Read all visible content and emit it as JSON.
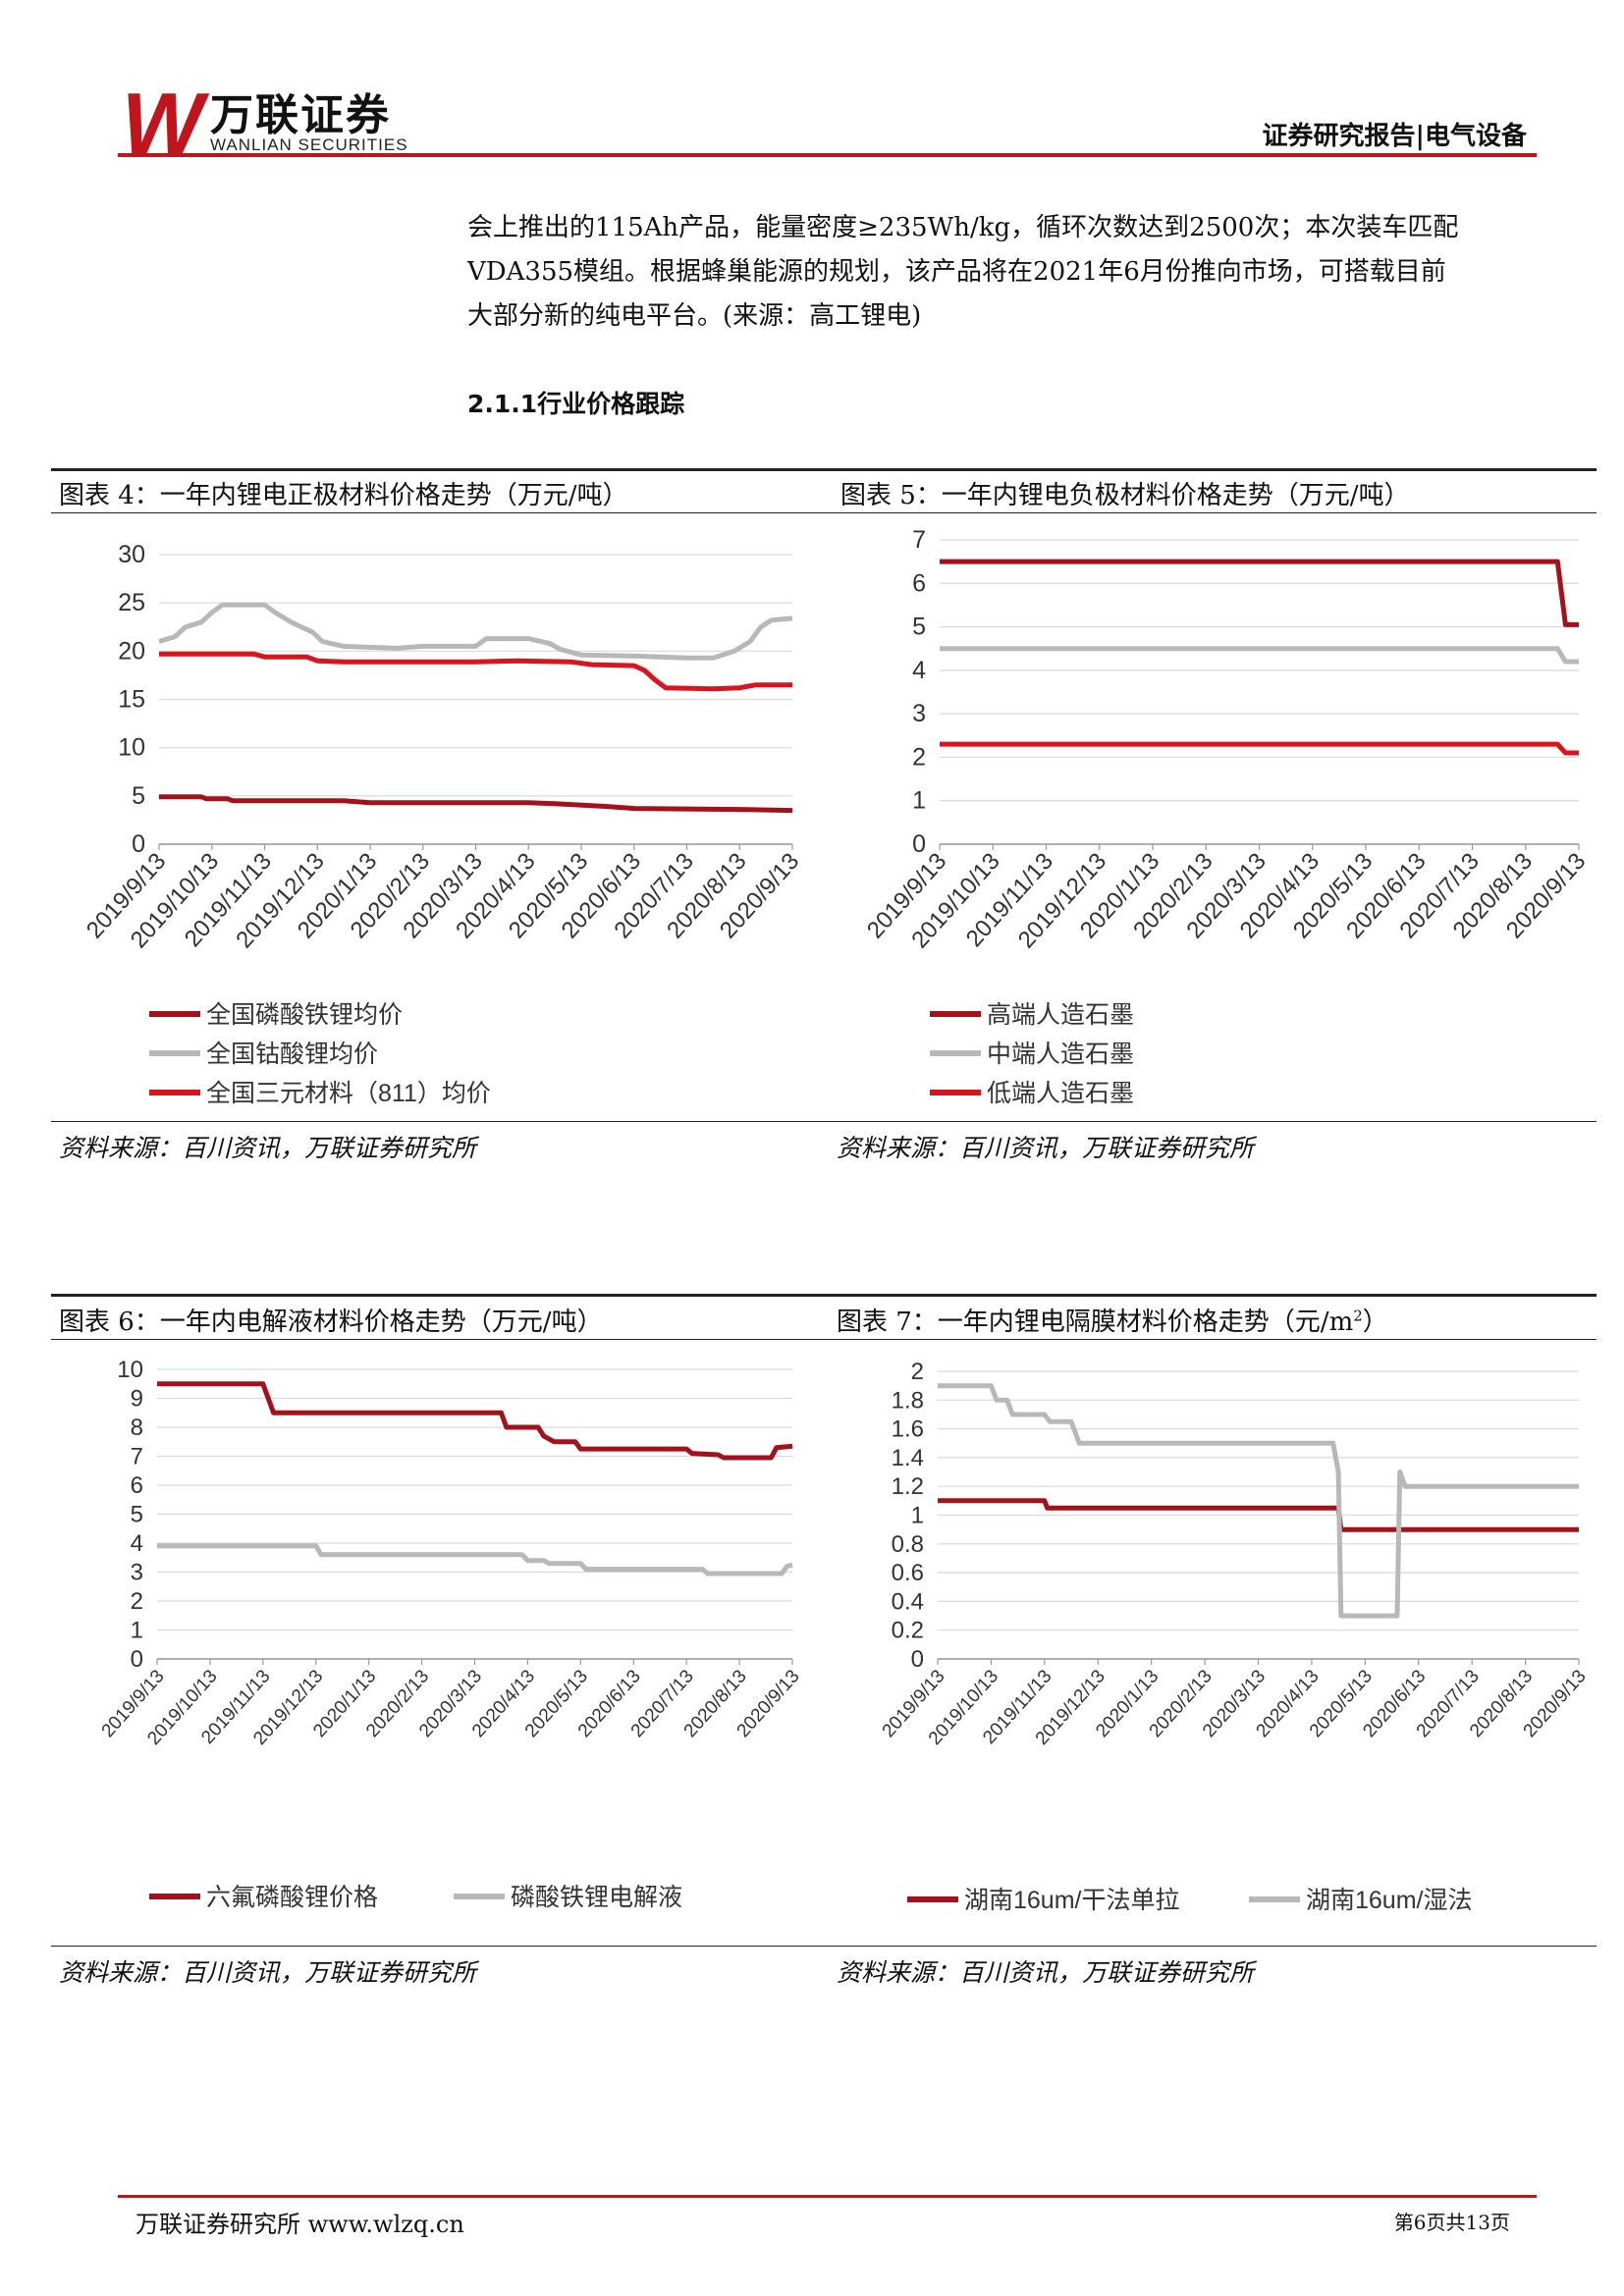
{
  "header": {
    "logo_letter": "W",
    "logo_cn": "万联证券",
    "logo_en": "WANLIAN SECURITIES",
    "report_type": "证券研究报告|电气设备"
  },
  "paragraph": {
    "lines": [
      "会上推出的115Ah产品，能量密度≥235Wh/kg，循环次数达到2500次；本次装车匹配",
      "VDA355模组。根据蜂巢能源的规划，该产品将在2021年6月份推向市场，可搭载目前",
      "大部分新的纯电平台。(来源：高工锂电)"
    ]
  },
  "section_title": "2.1.1行业价格跟踪",
  "figures": {
    "fig4": {
      "title": "图表 4：一年内锂电正极材料价格走势（万元/吨）",
      "source": "资料来源：百川资讯，万联证券研究所"
    },
    "fig5": {
      "title": "图表 5：一年内锂电负极材料价格走势（万元/吨）",
      "source": "资料来源：百川资讯，万联证券研究所"
    },
    "fig6": {
      "title": "图表 6：一年内电解液材料价格走势（万元/吨）",
      "source": "资料来源：百川资讯，万联证券研究所"
    },
    "fig7": {
      "title": "图表 7：一年内锂电隔膜材料价格走势（元/m",
      "title_sup": "2",
      "title_end": "）",
      "source": "资料来源：百川资讯，万联证券研究所"
    }
  },
  "footer": {
    "left": "万联证券研究所 www.wlzq.cn",
    "right": "第6页共13页"
  },
  "colors": {
    "dark_red": "#a4111a",
    "red": "#d9141c",
    "gray": "#b8b8b8",
    "rule": "#222222"
  },
  "chart_data": [
    {
      "id": "fig4",
      "type": "line",
      "categories": [
        "2019/9/13",
        "2019/10/13",
        "2019/11/13",
        "2019/12/13",
        "2020/1/13",
        "2020/2/13",
        "2020/3/13",
        "2020/4/13",
        "2020/5/13",
        "2020/6/13",
        "2020/7/13",
        "2020/8/13",
        "2020/9/13"
      ],
      "ylim": [
        0,
        30
      ],
      "yticks": [
        0,
        5,
        10,
        15,
        20,
        25,
        30
      ],
      "series": [
        {
          "name": "全国磷酸铁锂均价",
          "color": "#a4111a",
          "points": [
            [
              0,
              4.9
            ],
            [
              0.8,
              4.9
            ],
            [
              0.9,
              4.7
            ],
            [
              1.3,
              4.7
            ],
            [
              1.4,
              4.5
            ],
            [
              3.5,
              4.5
            ],
            [
              4,
              4.3
            ],
            [
              7,
              4.3
            ],
            [
              7.5,
              4.2
            ],
            [
              8.2,
              4.0
            ],
            [
              8.5,
              3.9
            ],
            [
              9,
              3.7
            ],
            [
              11,
              3.6
            ],
            [
              12,
              3.5
            ]
          ]
        },
        {
          "name": "全国钴酸锂均价",
          "color": "#b8b8b8",
          "points": [
            [
              0,
              21
            ],
            [
              0.3,
              21.5
            ],
            [
              0.5,
              22.5
            ],
            [
              0.8,
              23
            ],
            [
              1,
              24
            ],
            [
              1.2,
              24.8
            ],
            [
              2,
              24.8
            ],
            [
              2.2,
              24
            ],
            [
              2.5,
              23
            ],
            [
              2.9,
              22
            ],
            [
              3.1,
              21
            ],
            [
              3.5,
              20.5
            ],
            [
              4.5,
              20.3
            ],
            [
              5,
              20.5
            ],
            [
              6,
              20.5
            ],
            [
              6.2,
              21.3
            ],
            [
              7,
              21.3
            ],
            [
              7.4,
              20.8
            ],
            [
              7.6,
              20.2
            ],
            [
              8,
              19.6
            ],
            [
              9,
              19.5
            ],
            [
              10,
              19.3
            ],
            [
              10.5,
              19.3
            ],
            [
              10.9,
              20
            ],
            [
              11.2,
              21
            ],
            [
              11.4,
              22.5
            ],
            [
              11.6,
              23.2
            ],
            [
              12,
              23.4
            ]
          ]
        },
        {
          "name": "全国三元材料（811）均价",
          "color": "#d9141c",
          "points": [
            [
              0,
              19.7
            ],
            [
              1.8,
              19.7
            ],
            [
              2,
              19.4
            ],
            [
              2.8,
              19.4
            ],
            [
              3,
              19
            ],
            [
              3.5,
              18.9
            ],
            [
              6,
              18.9
            ],
            [
              6.8,
              19
            ],
            [
              7.8,
              18.9
            ],
            [
              8.2,
              18.6
            ],
            [
              9,
              18.5
            ],
            [
              9.2,
              18
            ],
            [
              9.4,
              17
            ],
            [
              9.6,
              16.2
            ],
            [
              10.5,
              16.1
            ],
            [
              11,
              16.2
            ],
            [
              11.3,
              16.5
            ],
            [
              12,
              16.5
            ]
          ]
        }
      ]
    },
    {
      "id": "fig5",
      "type": "line",
      "categories": [
        "2019/9/13",
        "2019/10/13",
        "2019/11/13",
        "2019/12/13",
        "2020/1/13",
        "2020/2/13",
        "2020/3/13",
        "2020/4/13",
        "2020/5/13",
        "2020/6/13",
        "2020/7/13",
        "2020/8/13",
        "2020/9/13"
      ],
      "ylim": [
        0,
        7
      ],
      "yticks": [
        0,
        1,
        2,
        3,
        4,
        5,
        6,
        7
      ],
      "series": [
        {
          "name": "高端人造石墨",
          "color": "#a4111a",
          "points": [
            [
              0,
              6.5
            ],
            [
              11.6,
              6.5
            ],
            [
              11.75,
              5.05
            ],
            [
              12,
              5.05
            ]
          ]
        },
        {
          "name": "中端人造石墨",
          "color": "#b8b8b8",
          "points": [
            [
              0,
              4.5
            ],
            [
              11.6,
              4.5
            ],
            [
              11.75,
              4.2
            ],
            [
              12,
              4.2
            ]
          ]
        },
        {
          "name": "低端人造石墨",
          "color": "#d9141c",
          "points": [
            [
              0,
              2.3
            ],
            [
              11.6,
              2.3
            ],
            [
              11.75,
              2.1
            ],
            [
              12,
              2.1
            ]
          ]
        }
      ]
    },
    {
      "id": "fig6",
      "type": "line",
      "categories": [
        "2019/9/13",
        "2019/10/13",
        "2019/11/13",
        "2019/12/13",
        "2020/1/13",
        "2020/2/13",
        "2020/3/13",
        "2020/4/13",
        "2020/5/13",
        "2020/6/13",
        "2020/7/13",
        "2020/8/13",
        "2020/9/13"
      ],
      "ylim": [
        0,
        10
      ],
      "yticks": [
        0,
        1,
        2,
        3,
        4,
        5,
        6,
        7,
        8,
        9,
        10
      ],
      "series": [
        {
          "name": "六氟磷酸锂价格",
          "color": "#a4111a",
          "points": [
            [
              0,
              9.5
            ],
            [
              2,
              9.5
            ],
            [
              2.1,
              9
            ],
            [
              2.2,
              8.5
            ],
            [
              6.5,
              8.5
            ],
            [
              6.6,
              8
            ],
            [
              7.2,
              8
            ],
            [
              7.3,
              7.7
            ],
            [
              7.5,
              7.5
            ],
            [
              7.9,
              7.5
            ],
            [
              8,
              7.25
            ],
            [
              10,
              7.25
            ],
            [
              10.1,
              7.1
            ],
            [
              10.6,
              7.05
            ],
            [
              10.7,
              6.95
            ],
            [
              11.6,
              6.95
            ],
            [
              11.7,
              7.3
            ],
            [
              12,
              7.35
            ]
          ]
        },
        {
          "name": "磷酸铁锂电解液",
          "color": "#b8b8b8",
          "points": [
            [
              0,
              3.9
            ],
            [
              3,
              3.9
            ],
            [
              3.1,
              3.6
            ],
            [
              6.9,
              3.6
            ],
            [
              7,
              3.4
            ],
            [
              7.3,
              3.4
            ],
            [
              7.4,
              3.3
            ],
            [
              8,
              3.3
            ],
            [
              8.1,
              3.1
            ],
            [
              10.3,
              3.1
            ],
            [
              10.4,
              2.95
            ],
            [
              11.8,
              2.95
            ],
            [
              11.9,
              3.2
            ],
            [
              12,
              3.25
            ]
          ]
        }
      ]
    },
    {
      "id": "fig7",
      "type": "line",
      "categories": [
        "2019/9/13",
        "2019/10/13",
        "2019/11/13",
        "2019/12/13",
        "2020/1/13",
        "2020/2/13",
        "2020/3/13",
        "2020/4/13",
        "2020/5/13",
        "2020/6/13",
        "2020/7/13",
        "2020/8/13",
        "2020/9/13"
      ],
      "ylim": [
        0,
        2
      ],
      "yticks": [
        0,
        0.2,
        0.4,
        0.6,
        0.8,
        1,
        1.2,
        1.4,
        1.6,
        1.8,
        2
      ],
      "series": [
        {
          "name": "湖南16um/干法单拉",
          "color": "#a4111a",
          "points": [
            [
              0,
              1.1
            ],
            [
              2,
              1.1
            ],
            [
              2.05,
              1.05
            ],
            [
              7.5,
              1.05
            ],
            [
              7.55,
              0.9
            ],
            [
              12,
              0.9
            ]
          ]
        },
        {
          "name": "湖南16um/湿法",
          "color": "#b8b8b8",
          "points": [
            [
              0,
              1.9
            ],
            [
              1,
              1.9
            ],
            [
              1.1,
              1.8
            ],
            [
              1.3,
              1.8
            ],
            [
              1.4,
              1.7
            ],
            [
              2,
              1.7
            ],
            [
              2.1,
              1.65
            ],
            [
              2.5,
              1.65
            ],
            [
              2.6,
              1.55
            ],
            [
              2.65,
              1.5
            ],
            [
              7.4,
              1.5
            ],
            [
              7.5,
              1.3
            ],
            [
              7.55,
              0.3
            ],
            [
              8.6,
              0.3
            ],
            [
              8.65,
              1.3
            ],
            [
              8.7,
              1.25
            ],
            [
              8.75,
              1.2
            ],
            [
              12,
              1.2
            ]
          ]
        }
      ]
    }
  ]
}
